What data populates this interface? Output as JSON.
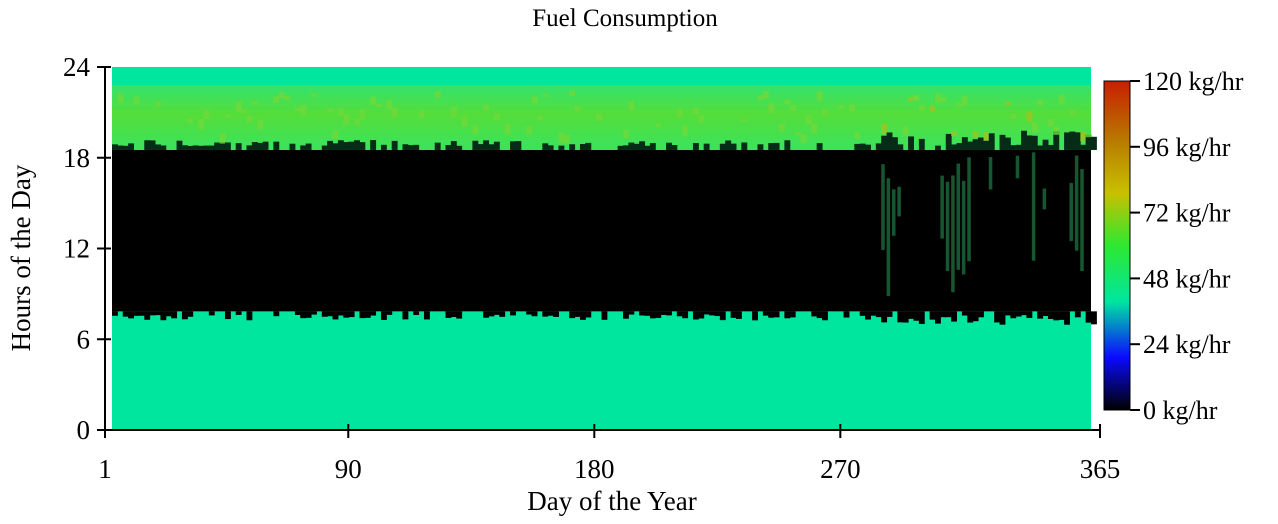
{
  "chart_data": {
    "type": "heatmap",
    "title": "Fuel Consumption",
    "xlabel": "Day of the Year",
    "ylabel": "Hours of the Day",
    "xlim": [
      1,
      365
    ],
    "ylim": [
      0,
      24
    ],
    "x_ticks": [
      1,
      90,
      180,
      270,
      365
    ],
    "y_ticks": [
      0,
      6,
      12,
      18,
      24
    ],
    "colorbar": {
      "range": [
        0,
        120
      ],
      "unit": "kg/hr",
      "tick_values": [
        0,
        24,
        48,
        72,
        96,
        120
      ],
      "tick_labels": [
        "0 kg/hr",
        "24 kg/hr",
        "48 kg/hr",
        "72 kg/hr",
        "96 kg/hr",
        "120 kg/hr"
      ],
      "colors": [
        "#000000",
        "#0a0aff",
        "#00e6a0",
        "#2ee830",
        "#c8c000",
        "#b87a00",
        "#c81e00"
      ]
    },
    "hour_bands": [
      {
        "from": 0,
        "to": 7.8,
        "value": 40
      },
      {
        "from": 7.8,
        "to": 18.5,
        "value": 0
      },
      {
        "from": 18.5,
        "to": 22.8,
        "value": 58
      },
      {
        "from": 22.8,
        "to": 24,
        "value": 40
      }
    ],
    "colors": {
      "background_green": "#2bea8a",
      "low_black": "#000000",
      "evening_green": "#3ee25a"
    }
  }
}
